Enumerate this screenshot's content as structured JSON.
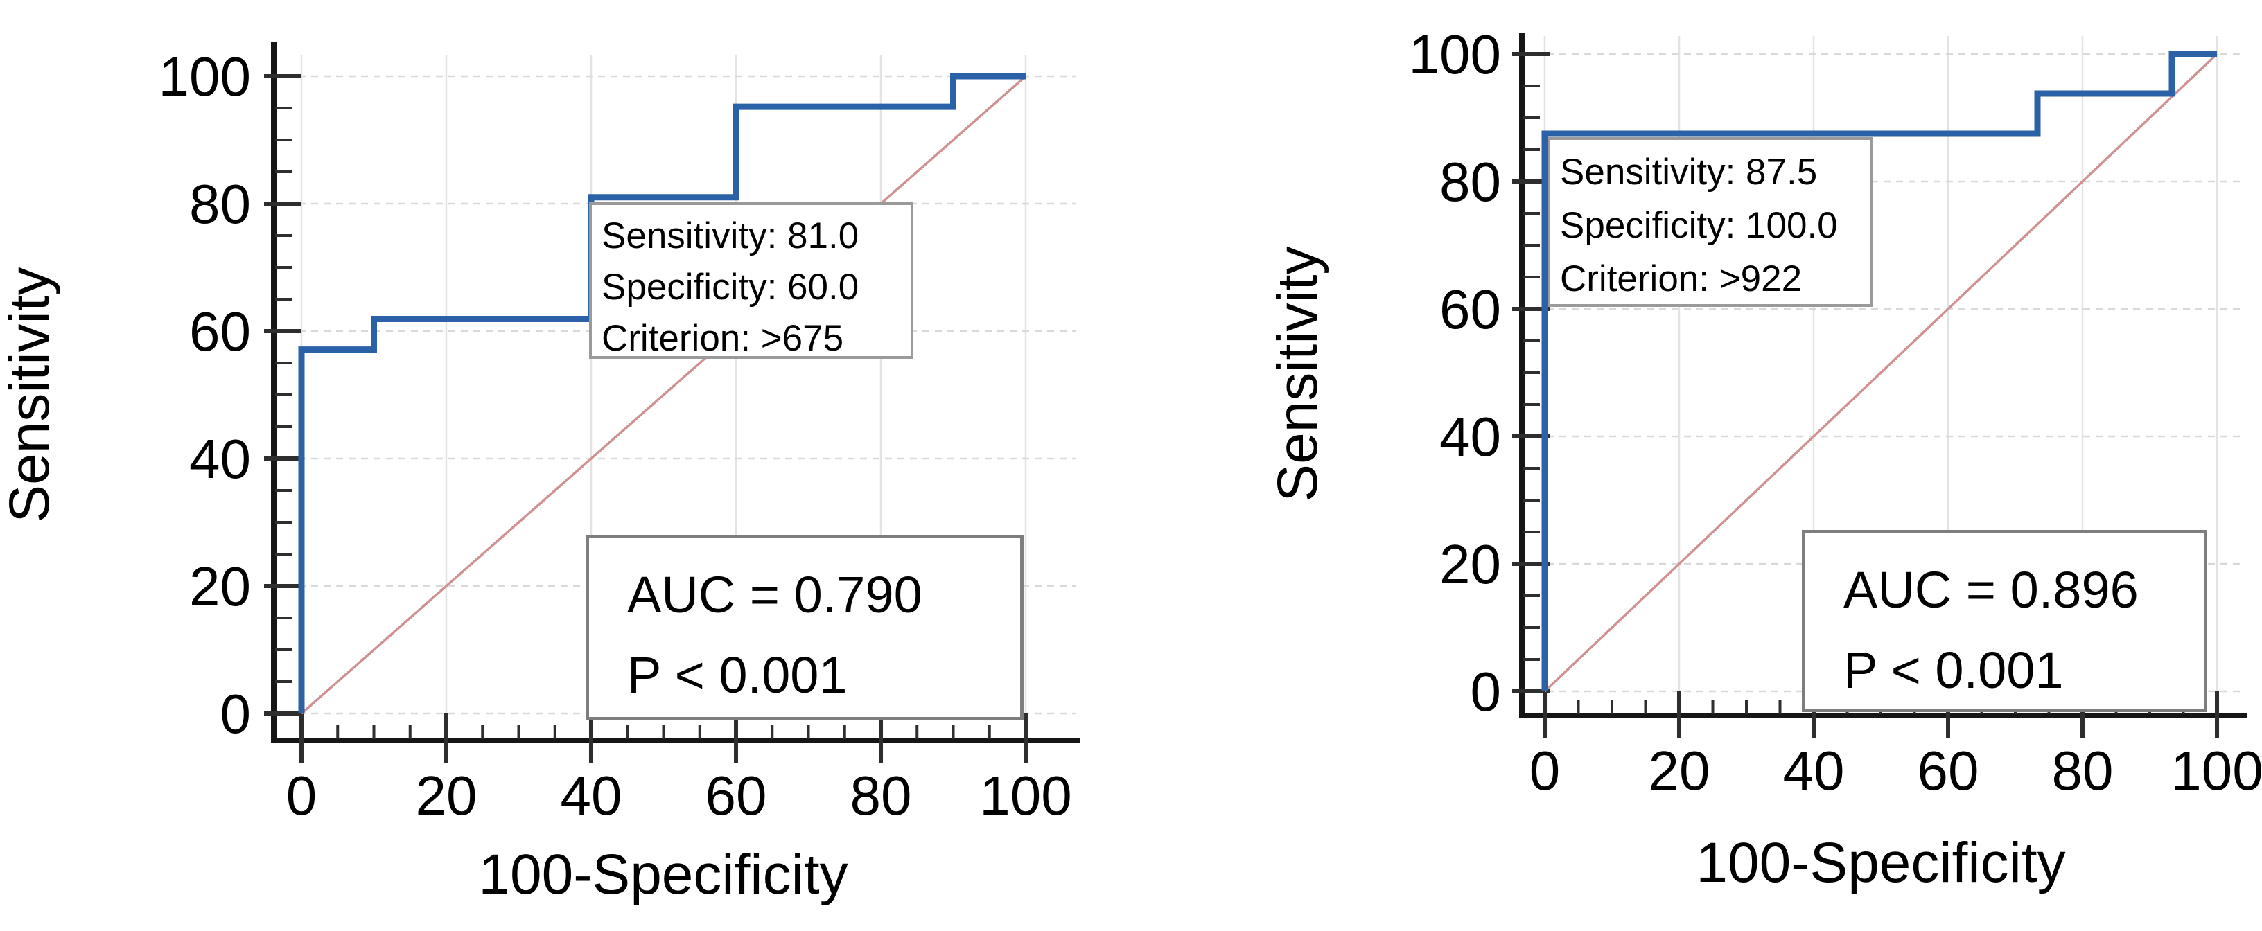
{
  "colors": {
    "background": "#ffffff",
    "roc_curve": "#2b61a6",
    "chance_diagonal": "#cf9191",
    "grid_vertical": "#e3e3e3",
    "grid_horizontal": "#d9d9d9",
    "axis": "#161616",
    "tick": "#2e2e2e",
    "text": "#000000",
    "criterion_box_border": "#9a9a9a",
    "auc_box_border": "#7e7e7e",
    "box_background": "#ffffff"
  },
  "chart_data": [
    {
      "type": "line",
      "subtype": "roc",
      "title": "",
      "xlabel": "100-Specificity",
      "ylabel": "Sensitivity",
      "xlim": [
        0,
        100
      ],
      "ylim": [
        0,
        100
      ],
      "x_ticks": [
        0,
        20,
        40,
        60,
        80,
        100
      ],
      "y_ticks": [
        0,
        20,
        40,
        60,
        80,
        100
      ],
      "minor_tick_step": 5,
      "grid": true,
      "legend_position": "none",
      "series": [
        {
          "name": "roc-curve",
          "x": [
            0,
            0,
            10,
            10,
            40,
            40,
            60,
            60,
            90,
            90,
            100
          ],
          "y": [
            0,
            57.1,
            57.1,
            61.9,
            61.9,
            81.0,
            81.0,
            95.2,
            95.2,
            100,
            100
          ]
        },
        {
          "name": "chance-diagonal",
          "x": [
            0,
            100
          ],
          "y": [
            0,
            100
          ]
        }
      ],
      "annotations": {
        "criterion": {
          "lines": [
            "Sensitivity: 81.0",
            "Specificity: 60.0",
            "Criterion: >675"
          ],
          "sensitivity": 81.0,
          "specificity": 60.0,
          "criterion": ">675"
        },
        "auc": {
          "lines": [
            "AUC = 0.790",
            "P < 0.001"
          ],
          "auc": 0.79,
          "p": "< 0.001"
        }
      }
    },
    {
      "type": "line",
      "subtype": "roc",
      "title": "",
      "xlabel": "100-Specificity",
      "ylabel": "Sensitivity",
      "xlim": [
        0,
        100
      ],
      "ylim": [
        0,
        100
      ],
      "x_ticks": [
        0,
        20,
        40,
        60,
        80,
        100
      ],
      "y_ticks": [
        0,
        20,
        40,
        60,
        80,
        100
      ],
      "minor_tick_step": 5,
      "grid": true,
      "legend_position": "none",
      "series": [
        {
          "name": "roc-curve",
          "x": [
            0,
            0,
            73.3,
            73.3,
            93.3,
            93.3,
            100
          ],
          "y": [
            0,
            87.5,
            87.5,
            93.8,
            93.8,
            100,
            100
          ]
        },
        {
          "name": "chance-diagonal",
          "x": [
            0,
            100
          ],
          "y": [
            0,
            100
          ]
        }
      ],
      "annotations": {
        "criterion": {
          "lines": [
            "Sensitivity: 87.5",
            "Specificity: 100.0",
            "Criterion: >922"
          ],
          "sensitivity": 87.5,
          "specificity": 100.0,
          "criterion": ">922"
        },
        "auc": {
          "lines": [
            "AUC = 0.896",
            "P < 0.001"
          ],
          "auc": 0.896,
          "p": "< 0.001"
        }
      }
    }
  ]
}
